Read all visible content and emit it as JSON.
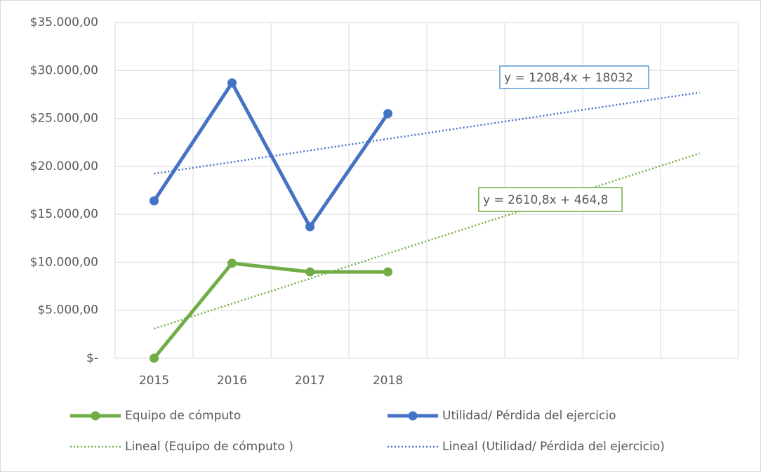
{
  "chart_data": {
    "type": "line",
    "categories": [
      "2015",
      "2016",
      "2017",
      "2018",
      null,
      null,
      null,
      null
    ],
    "series": [
      {
        "name": "Equipo de cómputo",
        "color": "#70ad47",
        "values": [
          0,
          9900,
          9000,
          9000,
          null,
          null,
          null,
          null
        ]
      },
      {
        "name": "Utilidad/ Pérdida del ejercicio",
        "color": "#4472c4",
        "values": [
          16400,
          28700,
          13700,
          25500,
          null,
          null,
          null,
          null
        ]
      }
    ],
    "trendlines": [
      {
        "name": "Lineal (Equipo de cómputo )",
        "color": "#70ad47",
        "slope": 2610.8,
        "intercept": 464.8,
        "label": "y = 2610,8x + 464,8"
      },
      {
        "name": "Lineal (Utilidad/ Pérdida del ejercicio)",
        "color": "#4472c4",
        "slope": 1208.4,
        "intercept": 18032,
        "label": "y = 1208,4x + 18032"
      }
    ],
    "ylim": [
      0,
      35000
    ],
    "yticks": [
      {
        "value": 0,
        "label": "$-"
      },
      {
        "value": 5000,
        "label": "$5.000,00"
      },
      {
        "value": 10000,
        "label": "$10.000,00"
      },
      {
        "value": 15000,
        "label": "$15.000,00"
      },
      {
        "value": 20000,
        "label": "$20.000,00"
      },
      {
        "value": 25000,
        "label": "$25.000,00"
      },
      {
        "value": 30000,
        "label": "$30.000,00"
      },
      {
        "value": 35000,
        "label": "$35.000,00"
      }
    ],
    "grid": true,
    "legend": "bottom"
  }
}
